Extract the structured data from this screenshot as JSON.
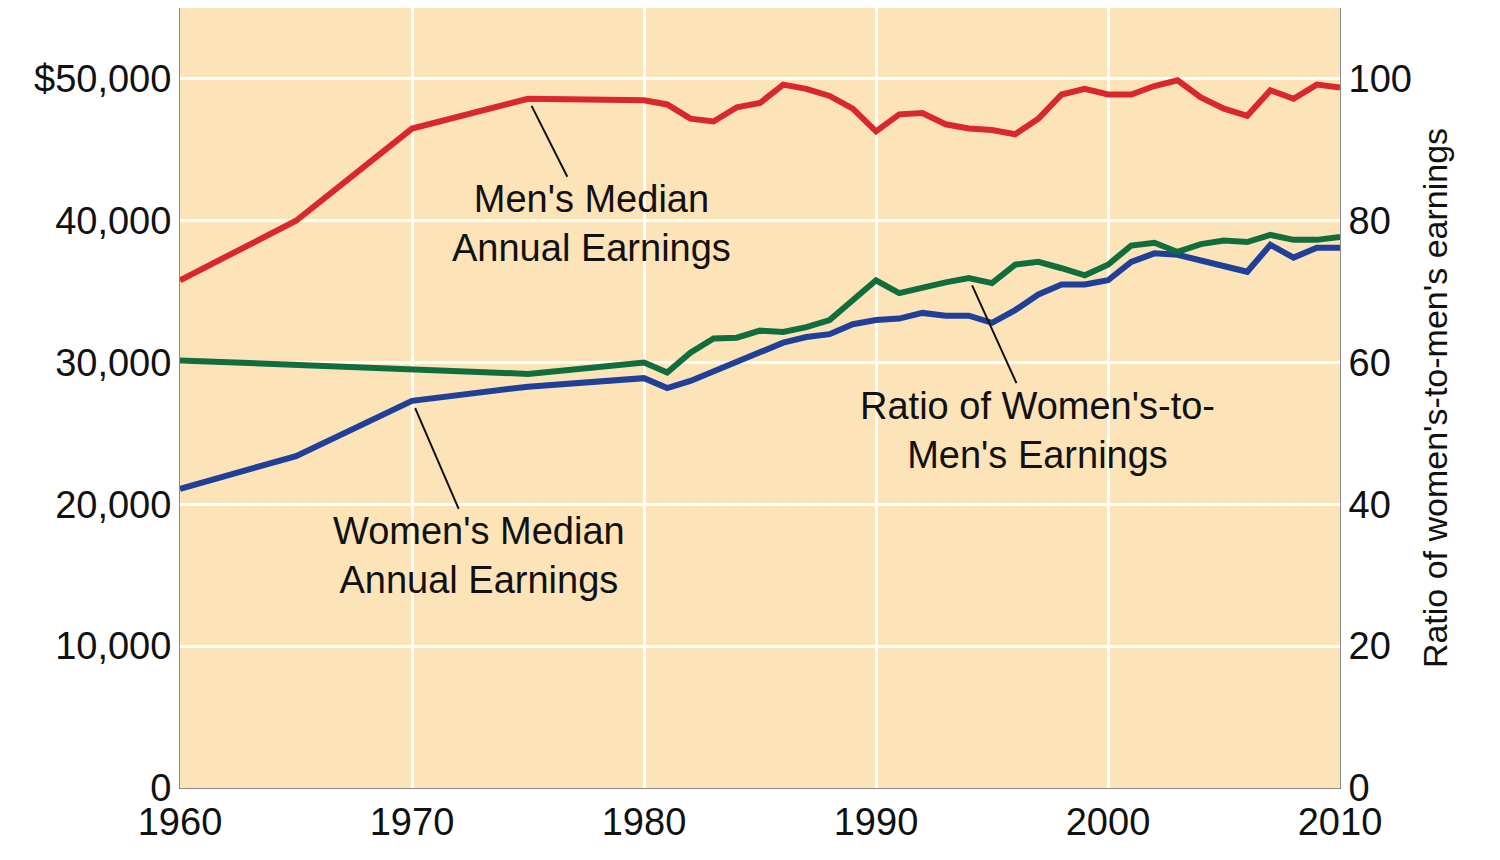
{
  "chart_data": {
    "type": "line",
    "y2label": "Ratio of women's-to-men's earnings",
    "x": [
      1960,
      1965,
      1970,
      1975,
      1980,
      1981,
      1982,
      1983,
      1984,
      1985,
      1986,
      1987,
      1988,
      1989,
      1990,
      1991,
      1992,
      1993,
      1994,
      1995,
      1996,
      1997,
      1998,
      1999,
      2000,
      2001,
      2002,
      2003,
      2004,
      2005,
      2006,
      2007,
      2008,
      2009,
      2010
    ],
    "series": [
      {
        "name": "Men's Median\nAnnual Earnings",
        "color": "#d9272e",
        "values": [
          35800,
          40000,
          46500,
          48600,
          48500,
          48200,
          47200,
          47000,
          48000,
          48300,
          49600,
          49300,
          48800,
          47900,
          46300,
          47500,
          47600,
          46800,
          46500,
          46400,
          46100,
          47200,
          48900,
          49300,
          48900,
          48900,
          49500,
          49900,
          48700,
          47900,
          47400,
          49200,
          48600,
          49600,
          49400
        ]
      },
      {
        "name": "Women's Median\nAnnual Earnings",
        "color": "#1f3f98",
        "values": [
          21100,
          23400,
          27300,
          28300,
          28900,
          28200,
          28700,
          29400,
          30000,
          30700,
          31400,
          31800,
          32000,
          32700,
          33000,
          33100,
          33500,
          33300,
          33300,
          32800,
          33700,
          34800,
          35500,
          35500,
          35800,
          37100,
          37700,
          37600,
          37200,
          36800,
          36400,
          38300,
          37400,
          38100,
          38100
        ]
      },
      {
        "name": "Ratio of Women's-to-\nMen's Earnings",
        "color": "#0f6e3c",
        "axis": "y2",
        "values": [
          60.3,
          59.6,
          59.1,
          58.4,
          60.0,
          58.6,
          61.4,
          63.4,
          63.5,
          64.5,
          64.3,
          65.0,
          66.0,
          68.8,
          71.6,
          69.8,
          70.6,
          71.3,
          71.9,
          71.2,
          73.8,
          74.2,
          73.3,
          72.3,
          73.8,
          76.5,
          76.9,
          75.6,
          76.7,
          77.2,
          77.0,
          78.0,
          77.3,
          77.3,
          77.7
        ]
      }
    ],
    "xlim": [
      1960,
      2010
    ],
    "xticks": [
      1960,
      1970,
      1980,
      1990,
      2000,
      2010
    ],
    "ylim": [
      0,
      55000
    ],
    "yticks": [
      0,
      {
        "value": 10000,
        "label": "10,000"
      },
      {
        "value": 20000,
        "label": "20,000"
      },
      {
        "value": 30000,
        "label": "30,000"
      },
      {
        "value": 40000,
        "label": "40,000"
      },
      {
        "value": 50000,
        "label": "$50,000"
      }
    ],
    "y2lim": [
      0,
      110
    ],
    "y2ticks": [
      0,
      20,
      40,
      60,
      80,
      100
    ],
    "grid": true
  }
}
